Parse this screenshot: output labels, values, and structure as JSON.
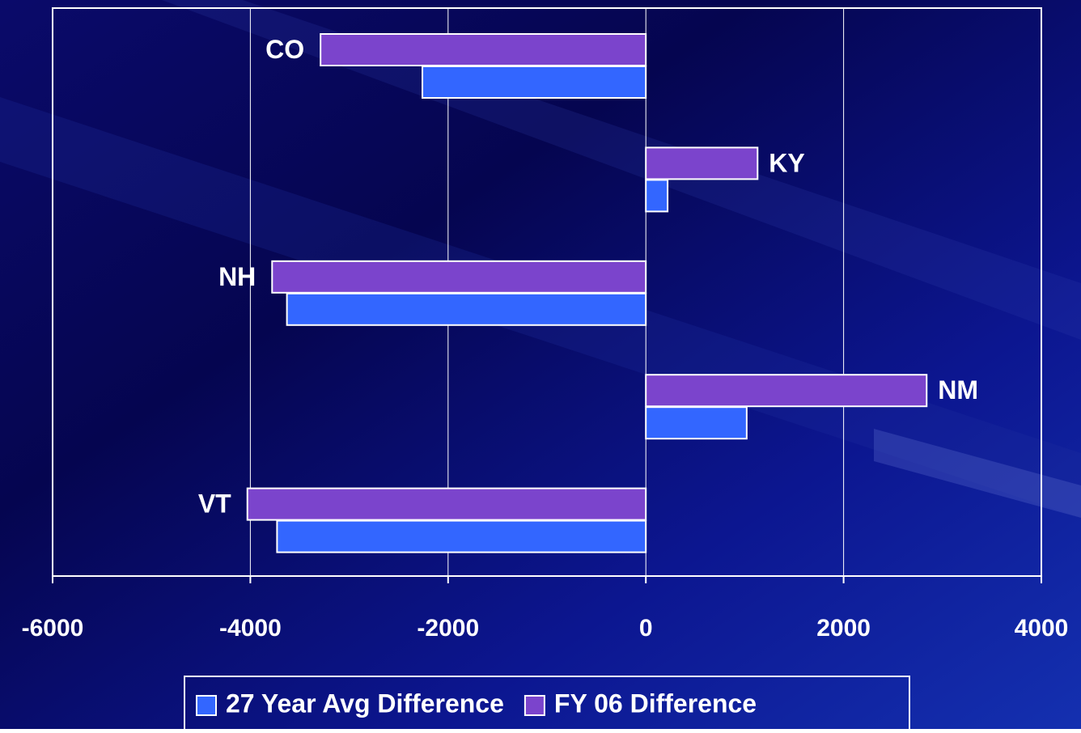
{
  "chart_data": {
    "type": "hbar",
    "categories": [
      "CO",
      "KY",
      "NH",
      "NM",
      "VT"
    ],
    "series": [
      {
        "name": "27 Year Avg Difference",
        "color": "#3366ff",
        "values": [
          -2260,
          220,
          -3630,
          1020,
          -3730
        ]
      },
      {
        "name": "FY 06 Difference",
        "color": "#7b44cc",
        "values": [
          -3290,
          1130,
          -3780,
          2840,
          -4030
        ]
      }
    ],
    "xlim": [
      -6000,
      4000
    ],
    "xticks": [
      -6000,
      -4000,
      -2000,
      0,
      2000,
      4000
    ],
    "grid": true,
    "legend": "bottom"
  }
}
